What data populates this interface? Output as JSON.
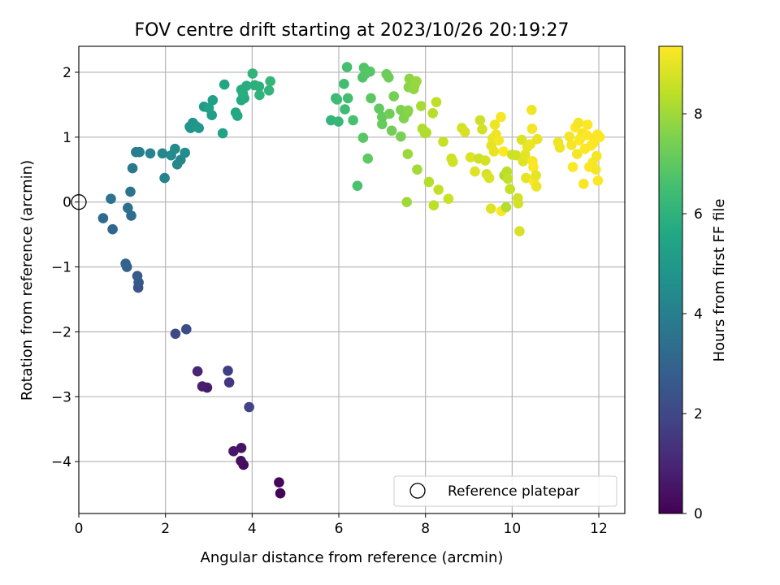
{
  "chart_data": {
    "type": "scatter",
    "title": "FOV centre drift starting at 2023/10/26 20:19:27",
    "xlabel": "Angular distance from reference (arcmin)",
    "ylabel": "Rotation from reference (arcmin)",
    "xlim": [
      0,
      12.6
    ],
    "ylim": [
      -4.8,
      2.4
    ],
    "xticks": [
      0,
      2,
      4,
      6,
      8,
      10,
      12
    ],
    "yticks": [
      -4,
      -3,
      -2,
      -1,
      0,
      1,
      2
    ],
    "grid": true,
    "legend": {
      "position": "bottom-right",
      "entries": [
        "Reference platepar"
      ]
    },
    "reference_point": {
      "label": "Reference platepar",
      "x": 0,
      "y": 0,
      "marker": "hollow-circle"
    },
    "colorbar": {
      "label": "Hours from first FF file",
      "colormap": "viridis",
      "range": [
        0,
        9.35
      ],
      "ticks": [
        0,
        2,
        4,
        6,
        8
      ]
    },
    "points": [
      [
        4.65,
        -4.49,
        0.08
      ],
      [
        4.62,
        -4.32,
        0.15
      ],
      [
        3.8,
        -4.05,
        0.28
      ],
      [
        3.74,
        -3.99,
        0.38
      ],
      [
        3.75,
        -3.79,
        0.5
      ],
      [
        3.57,
        -3.84,
        0.6
      ],
      [
        2.96,
        -2.86,
        0.72
      ],
      [
        2.85,
        -2.84,
        0.8
      ],
      [
        2.74,
        -2.61,
        0.95
      ],
      [
        3.47,
        -2.78,
        1.5
      ],
      [
        3.44,
        -2.6,
        1.7
      ],
      [
        3.93,
        -3.16,
        1.9
      ],
      [
        2.23,
        -2.03,
        2.05
      ],
      [
        2.48,
        -1.96,
        2.15
      ],
      [
        1.37,
        -1.32,
        2.4
      ],
      [
        1.38,
        -1.24,
        2.55
      ],
      [
        1.35,
        -1.14,
        2.7
      ],
      [
        1.11,
        -1.0,
        2.8
      ],
      [
        1.08,
        -0.95,
        2.95
      ],
      [
        0.78,
        -0.42,
        3.1
      ],
      [
        0.56,
        -0.25,
        3.2
      ],
      [
        1.21,
        -0.21,
        3.3
      ],
      [
        1.13,
        -0.09,
        3.4
      ],
      [
        0.74,
        0.05,
        3.5
      ],
      [
        1.19,
        0.16,
        3.6
      ],
      [
        1.24,
        0.52,
        3.75
      ],
      [
        1.32,
        0.77,
        3.85
      ],
      [
        1.4,
        0.77,
        4.0
      ],
      [
        1.98,
        0.37,
        4.1
      ],
      [
        1.65,
        0.75,
        4.15
      ],
      [
        1.93,
        0.75,
        4.25
      ],
      [
        2.35,
        0.65,
        4.3
      ],
      [
        2.27,
        0.58,
        4.35
      ],
      [
        2.13,
        0.72,
        4.4
      ],
      [
        2.22,
        0.82,
        4.45
      ],
      [
        2.45,
        0.76,
        4.5
      ],
      [
        2.56,
        1.16,
        4.6
      ],
      [
        2.63,
        1.22,
        4.7
      ],
      [
        2.58,
        1.14,
        4.8
      ],
      [
        2.7,
        1.17,
        4.9
      ],
      [
        2.77,
        1.14,
        5.0
      ],
      [
        2.89,
        1.47,
        5.1
      ],
      [
        3.07,
        1.34,
        5.2
      ],
      [
        3.09,
        1.57,
        5.3
      ],
      [
        3.0,
        1.45,
        5.35
      ],
      [
        3.32,
        1.06,
        5.4
      ],
      [
        3.36,
        1.81,
        5.5
      ],
      [
        3.62,
        1.38,
        5.55
      ],
      [
        3.66,
        1.33,
        5.6
      ],
      [
        3.75,
        1.57,
        5.65
      ],
      [
        3.82,
        1.6,
        5.7
      ],
      [
        3.75,
        1.73,
        5.75
      ],
      [
        3.87,
        1.79,
        5.8
      ],
      [
        3.79,
        1.67,
        5.85
      ],
      [
        4.06,
        1.8,
        5.9
      ],
      [
        4.16,
        1.78,
        5.95
      ],
      [
        4.17,
        1.65,
        6.0
      ],
      [
        4.01,
        1.98,
        6.05
      ],
      [
        4.39,
        1.72,
        6.1
      ],
      [
        4.42,
        1.86,
        6.15
      ],
      [
        5.82,
        1.26,
        6.1
      ],
      [
        5.99,
        1.24,
        6.2
      ],
      [
        5.93,
        1.6,
        6.3
      ],
      [
        5.96,
        1.58,
        6.35
      ],
      [
        6.14,
        1.43,
        6.4
      ],
      [
        6.12,
        1.82,
        6.45
      ],
      [
        6.21,
        1.6,
        6.5
      ],
      [
        6.19,
        2.08,
        6.55
      ],
      [
        6.33,
        1.26,
        6.6
      ],
      [
        6.43,
        0.25,
        6.65
      ],
      [
        6.55,
        1.92,
        6.7
      ],
      [
        6.58,
        2.07,
        6.75
      ],
      [
        6.62,
        1.98,
        6.8
      ],
      [
        6.72,
        2.01,
        6.85
      ],
      [
        6.56,
        0.99,
        6.9
      ],
      [
        6.74,
        1.6,
        6.95
      ],
      [
        6.67,
        0.67,
        7.0
      ],
      [
        6.93,
        1.44,
        7.05
      ],
      [
        7.0,
        1.31,
        7.1
      ],
      [
        7.0,
        1.2,
        7.15
      ],
      [
        7.1,
        1.97,
        7.2
      ],
      [
        7.15,
        1.92,
        7.25
      ],
      [
        7.17,
        1.36,
        7.3
      ],
      [
        7.22,
        1.1,
        7.35
      ],
      [
        7.27,
        1.63,
        7.4
      ],
      [
        7.43,
        1.01,
        7.45
      ],
      [
        7.43,
        1.42,
        7.5
      ],
      [
        7.5,
        1.29,
        7.55
      ],
      [
        7.58,
        1.38,
        7.6
      ],
      [
        7.6,
        1.41,
        7.65
      ],
      [
        7.61,
        1.77,
        7.7
      ],
      [
        7.63,
        1.9,
        7.75
      ],
      [
        7.73,
        1.74,
        7.8
      ],
      [
        7.75,
        1.8,
        7.85
      ],
      [
        7.79,
        1.86,
        7.9
      ],
      [
        7.59,
        0.74,
        7.95
      ],
      [
        7.57,
        0.0,
        8.0
      ],
      [
        7.81,
        0.5,
        8.05
      ],
      [
        7.9,
        1.48,
        8.1
      ],
      [
        7.99,
        1.06,
        8.15
      ],
      [
        7.93,
        1.13,
        8.2
      ],
      [
        8.02,
        1.07,
        8.25
      ],
      [
        8.08,
        0.31,
        8.3
      ],
      [
        8.17,
        1.37,
        8.35
      ],
      [
        8.19,
        -0.05,
        8.4
      ],
      [
        8.25,
        1.54,
        8.45
      ],
      [
        8.3,
        0.19,
        8.5
      ],
      [
        8.41,
        0.93,
        8.55
      ],
      [
        8.53,
        0.05,
        8.6
      ],
      [
        8.6,
        0.67,
        8.65
      ],
      [
        8.63,
        0.62,
        8.7
      ],
      [
        8.84,
        1.14,
        8.75
      ],
      [
        8.91,
        1.08,
        8.8
      ],
      [
        9.04,
        0.69,
        8.85
      ],
      [
        9.14,
        0.47,
        8.9
      ],
      [
        9.23,
        0.67,
        8.6
      ],
      [
        9.26,
        1.26,
        8.65
      ],
      [
        9.31,
        1.12,
        8.7
      ],
      [
        9.38,
        0.64,
        8.75
      ],
      [
        9.41,
        0.43,
        8.8
      ],
      [
        9.47,
        0.37,
        8.85
      ],
      [
        9.51,
        -0.1,
        8.9
      ],
      [
        9.52,
        0.87,
        8.95
      ],
      [
        9.55,
        0.98,
        9.0
      ],
      [
        9.58,
        0.78,
        9.05
      ],
      [
        9.6,
        1.19,
        9.1
      ],
      [
        9.63,
        1.04,
        9.15
      ],
      [
        9.69,
        0.95,
        9.2
      ],
      [
        9.74,
        1.31,
        9.25
      ],
      [
        9.75,
        -0.14,
        9.3
      ],
      [
        9.8,
        0.78,
        9.35
      ],
      [
        9.82,
        0.41,
        8.2
      ],
      [
        9.86,
        -0.08,
        8.3
      ],
      [
        9.88,
        0.47,
        8.4
      ],
      [
        9.9,
        0.36,
        8.5
      ],
      [
        9.95,
        0.2,
        8.55
      ],
      [
        10.0,
        0.73,
        8.6
      ],
      [
        10.09,
        0.72,
        8.65
      ],
      [
        10.13,
        0.06,
        8.7
      ],
      [
        10.14,
        -0.02,
        8.75
      ],
      [
        10.17,
        -0.45,
        8.8
      ],
      [
        10.22,
        0.96,
        8.85
      ],
      [
        10.25,
        0.63,
        8.9
      ],
      [
        10.3,
        0.73,
        8.95
      ],
      [
        10.32,
        0.37,
        9.0
      ],
      [
        10.35,
        0.85,
        9.05
      ],
      [
        10.42,
        0.89,
        9.1
      ],
      [
        10.45,
        1.42,
        9.15
      ],
      [
        10.46,
        1.13,
        9.2
      ],
      [
        10.47,
        0.63,
        9.25
      ],
      [
        10.49,
        0.54,
        9.3
      ],
      [
        10.5,
        0.32,
        9.35
      ],
      [
        10.55,
        0.41,
        9.0
      ],
      [
        10.58,
        0.97,
        9.05
      ],
      [
        10.56,
        0.24,
        9.1
      ],
      [
        11.06,
        0.92,
        9.1
      ],
      [
        11.1,
        0.84,
        9.15
      ],
      [
        11.32,
        1.01,
        9.2
      ],
      [
        11.37,
        0.88,
        9.25
      ],
      [
        11.4,
        0.54,
        9.3
      ],
      [
        11.46,
        1.15,
        9.35
      ],
      [
        11.5,
        0.74,
        9.2
      ],
      [
        11.53,
        1.22,
        9.22
      ],
      [
        11.57,
        0.98,
        9.24
      ],
      [
        11.62,
        1.06,
        9.26
      ],
      [
        11.65,
        0.28,
        9.28
      ],
      [
        11.68,
        0.82,
        9.3
      ],
      [
        11.72,
        1.03,
        9.32
      ],
      [
        11.74,
        1.19,
        9.34
      ],
      [
        11.78,
        0.54,
        9.35
      ],
      [
        11.82,
        0.87,
        9.3
      ],
      [
        11.86,
        0.61,
        9.28
      ],
      [
        11.9,
        0.99,
        9.26
      ],
      [
        11.93,
        0.5,
        9.24
      ],
      [
        11.95,
        0.71,
        9.22
      ],
      [
        11.97,
        1.04,
        9.3
      ],
      [
        11.98,
        0.33,
        9.32
      ],
      [
        12.02,
        1.0,
        9.34
      ],
      [
        11.88,
        0.91,
        9.35
      ],
      [
        11.55,
        0.95,
        9.33
      ]
    ]
  }
}
